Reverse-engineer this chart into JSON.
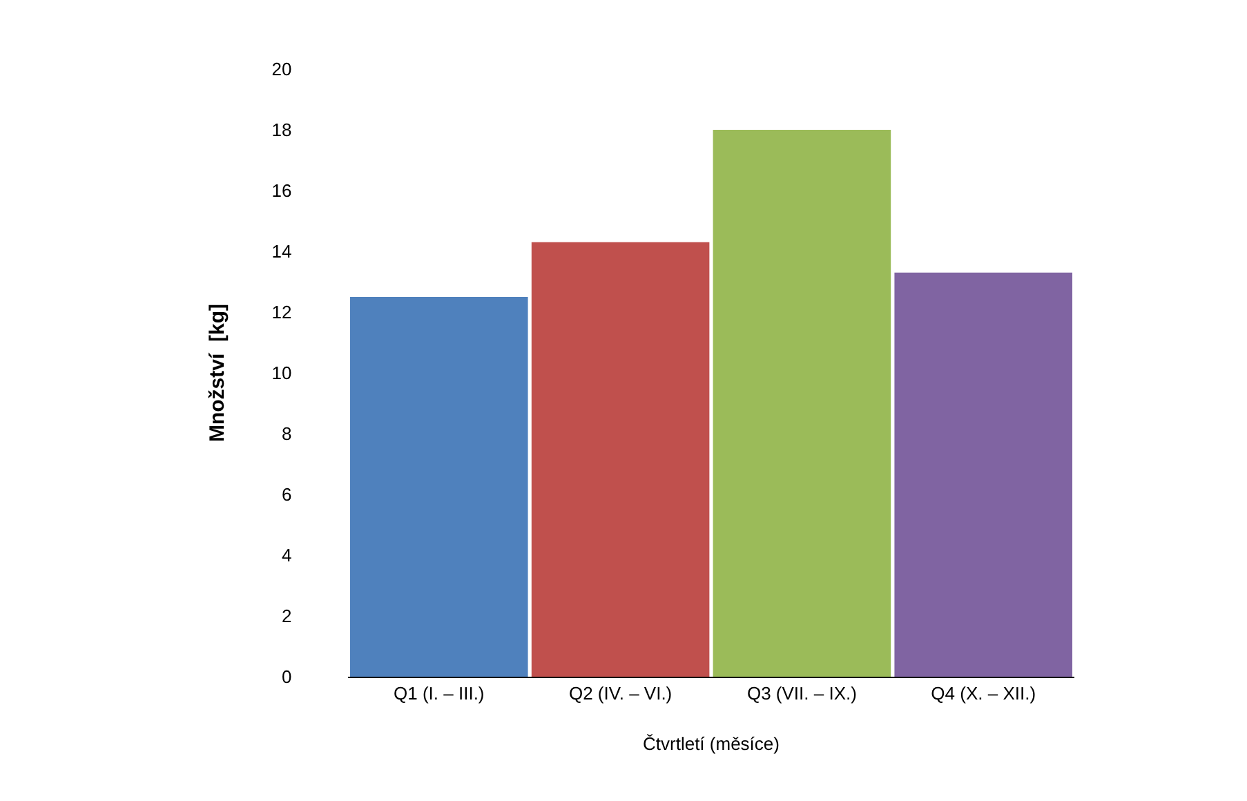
{
  "chart_data": {
    "type": "bar",
    "xlabel": "Čtvrtletí (měsíce)",
    "ylabel": "Množství  [kg]",
    "categories": [
      "Q1 (I. – III.)",
      "Q2 (IV. – VI.)",
      "Q3 (VII. – IX.)",
      "Q4 (X. – XII.)"
    ],
    "values": [
      12.5,
      14.3,
      18.0,
      13.3
    ],
    "colors": [
      "#4f81bd",
      "#c0504d",
      "#9bbb59",
      "#8064a2"
    ],
    "ylim": [
      0,
      20
    ],
    "yticks": [
      0,
      2,
      4,
      6,
      8,
      10,
      12,
      14,
      16,
      18,
      20
    ]
  }
}
